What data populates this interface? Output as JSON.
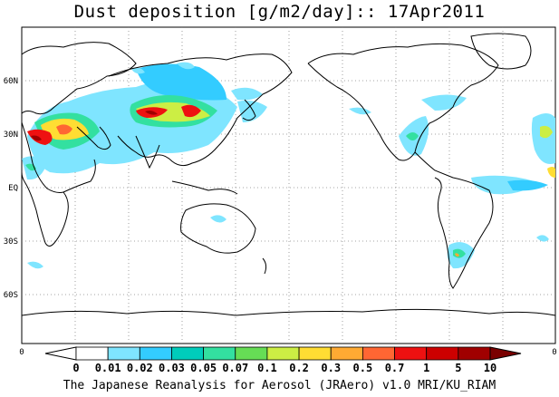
{
  "title": "Dust deposition [g/m2/day]:: 17Apr2011",
  "map": {
    "lat_labels": [
      "60N",
      "30N",
      "EQ",
      "30S",
      "60S"
    ],
    "bottom_left_label": "0",
    "bottom_right_label": "0"
  },
  "colorbar": {
    "levels": [
      "0",
      "0.01",
      "0.02",
      "0.03",
      "0.05",
      "0.07",
      "0.1",
      "0.2",
      "0.3",
      "0.5",
      "0.7",
      "1",
      "5",
      "10"
    ],
    "colors": [
      "#ffffff",
      "#ffffff",
      "#7fe5ff",
      "#33ccff",
      "#00ccbb",
      "#33e0a0",
      "#66dd55",
      "#ccee44",
      "#ffdd33",
      "#ffaa33",
      "#ff6633",
      "#ee1111",
      "#cc0000",
      "#a00000",
      "#7a0000"
    ]
  },
  "credit": "The Japanese Reanalysis for Aerosol (JRAero) v1.0 MRI/KU_RIAM"
}
